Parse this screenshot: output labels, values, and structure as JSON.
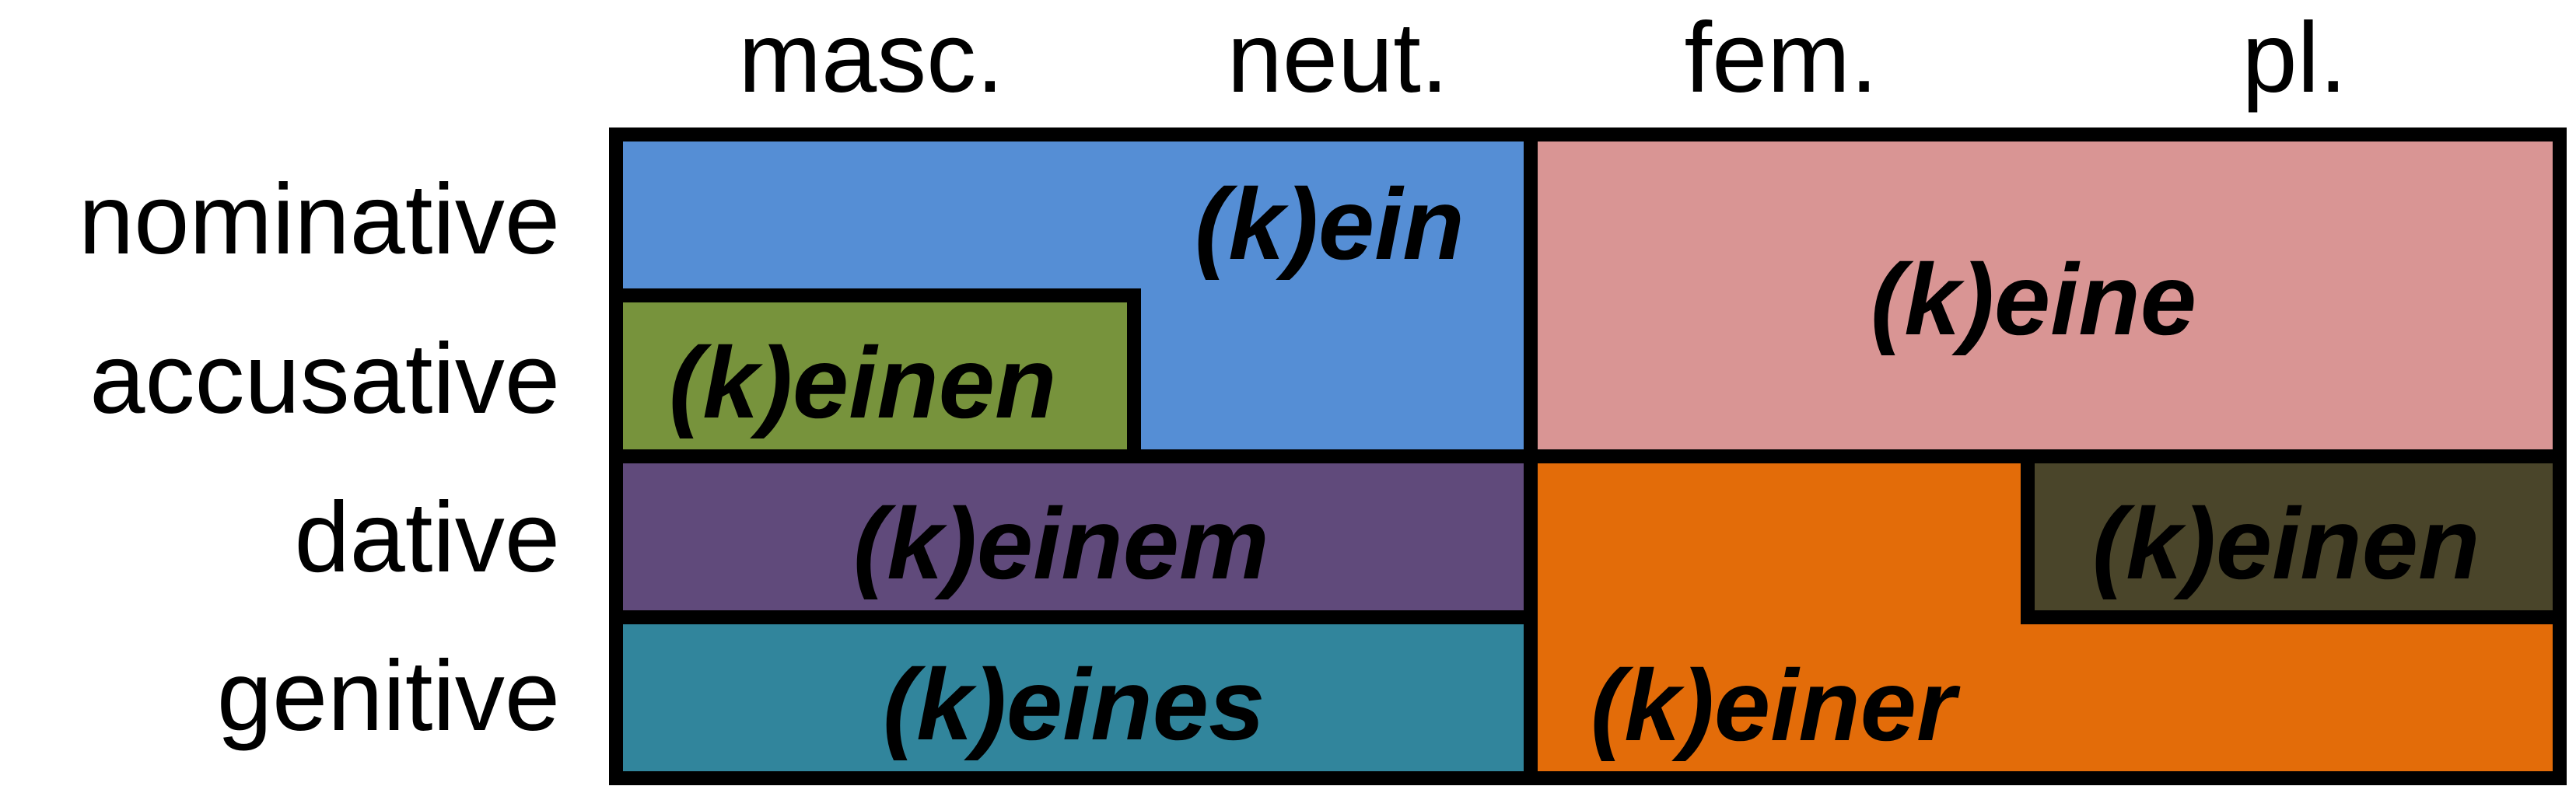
{
  "columns": {
    "masc": "masc.",
    "neut": "neut.",
    "fem": "fem.",
    "pl": "pl."
  },
  "rows": {
    "nominative": "nominative",
    "accusative": "accusative",
    "dative": "dative",
    "genitive": "genitive"
  },
  "cells": {
    "masc_neut_nominative": {
      "text": "(k)ein",
      "color": "#558ed5"
    },
    "masc_accusative": {
      "text": "(k)einen",
      "color": "#77933c"
    },
    "fem_pl_nom_acc": {
      "text": "(k)eine",
      "color": "#d99594"
    },
    "masc_neut_dative": {
      "text": "(k)einem",
      "color": "#604a7b"
    },
    "pl_dative": {
      "text": "(k)einen",
      "color": "#4a452a"
    },
    "masc_neut_genitive": {
      "text": "(k)eines",
      "color": "#31859c"
    },
    "fem_pl_genitive": {
      "text": "(k)einer",
      "color": "#e36c09"
    }
  }
}
